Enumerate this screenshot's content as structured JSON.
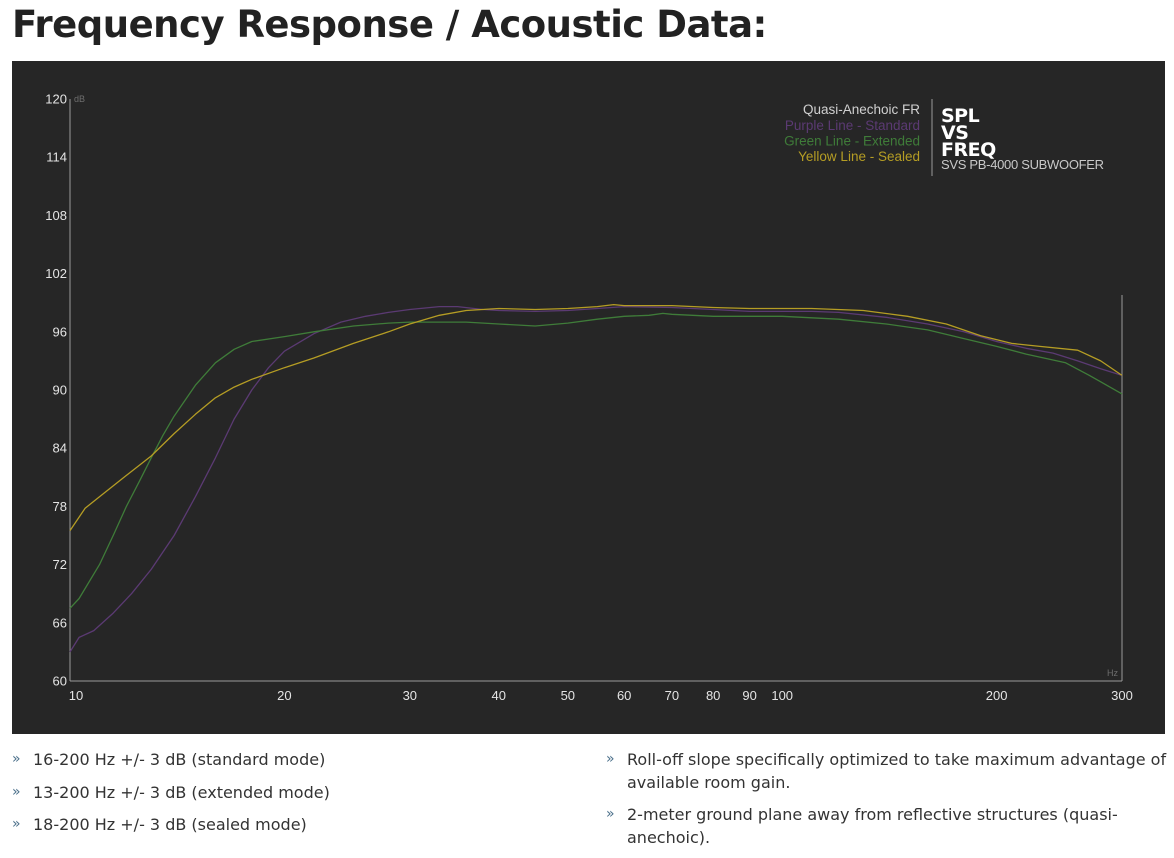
{
  "page": {
    "title": "Frequency Response / Acoustic Data:"
  },
  "legend": {
    "header": "Quasi-Anechoic FR",
    "items": [
      {
        "label": "Purple Line - Standard",
        "color": "#5b3a73"
      },
      {
        "label": "Green Line - Extended",
        "color": "#3f7c39"
      },
      {
        "label": "Yellow Line - Sealed",
        "color": "#b59d24"
      }
    ]
  },
  "brand": {
    "line1": "SPL",
    "line2": "VS",
    "line3": "FREQ",
    "subtitle": "SVS PB-4000 SUBWOOFER"
  },
  "bullets": {
    "left": [
      "16-200 Hz +/- 3 dB (standard mode)",
      "13-200 Hz +/- 3 dB (extended mode)",
      "18-200 Hz +/- 3 dB (sealed mode)"
    ],
    "right": [
      "Roll-off slope specifically optimized to take maximum advantage of available room gain.",
      " 2-meter ground plane away from reflective structures (quasi-anechoic)."
    ]
  },
  "chart_data": {
    "type": "line",
    "xscale": "log",
    "xlim": [
      10,
      300
    ],
    "ylim": [
      60,
      120
    ],
    "xlabel": "Hz",
    "ylabel": "dB",
    "xticks": [
      10,
      20,
      30,
      40,
      50,
      60,
      70,
      80,
      90,
      100,
      200,
      300
    ],
    "yticks": [
      60,
      66,
      72,
      78,
      84,
      90,
      96,
      102,
      108,
      114,
      120
    ],
    "grid": false,
    "legend_position": "top-right",
    "series": [
      {
        "name": "Purple Line - Standard",
        "color": "#5b3a73",
        "points": [
          [
            10,
            63
          ],
          [
            10.3,
            64.5
          ],
          [
            10.8,
            65.2
          ],
          [
            11.5,
            67
          ],
          [
            12.2,
            69
          ],
          [
            13,
            71.5
          ],
          [
            14,
            75
          ],
          [
            15,
            79
          ],
          [
            16,
            83
          ],
          [
            17,
            87
          ],
          [
            18,
            90
          ],
          [
            19,
            92.3
          ],
          [
            20,
            94
          ],
          [
            22,
            95.8
          ],
          [
            24,
            97
          ],
          [
            26,
            97.6
          ],
          [
            28,
            98
          ],
          [
            30,
            98.3
          ],
          [
            33,
            98.6
          ],
          [
            35,
            98.6
          ],
          [
            38,
            98.3
          ],
          [
            40,
            98.2
          ],
          [
            45,
            98.1
          ],
          [
            50,
            98.2
          ],
          [
            55,
            98.4
          ],
          [
            60,
            98.6
          ],
          [
            70,
            98.5
          ],
          [
            80,
            98.3
          ],
          [
            90,
            98.1
          ],
          [
            100,
            98.1
          ],
          [
            110,
            98.1
          ],
          [
            120,
            98
          ],
          [
            140,
            97.5
          ],
          [
            160,
            96.8
          ],
          [
            180,
            96
          ],
          [
            200,
            95
          ],
          [
            220,
            94.3
          ],
          [
            240,
            93.8
          ],
          [
            260,
            93
          ],
          [
            280,
            92.2
          ],
          [
            300,
            91.5
          ]
        ]
      },
      {
        "name": "Green Line - Extended",
        "color": "#3f7c39",
        "points": [
          [
            10,
            67.5
          ],
          [
            10.3,
            68.5
          ],
          [
            11,
            72
          ],
          [
            11.5,
            75
          ],
          [
            12,
            78
          ],
          [
            12.5,
            80.5
          ],
          [
            13,
            83
          ],
          [
            13.5,
            85.3
          ],
          [
            14,
            87.3
          ],
          [
            15,
            90.5
          ],
          [
            16,
            92.8
          ],
          [
            17,
            94.2
          ],
          [
            18,
            95
          ],
          [
            20,
            95.5
          ],
          [
            22,
            96
          ],
          [
            25,
            96.6
          ],
          [
            28,
            96.9
          ],
          [
            30,
            97
          ],
          [
            33,
            97
          ],
          [
            36,
            97
          ],
          [
            40,
            96.8
          ],
          [
            45,
            96.6
          ],
          [
            50,
            96.9
          ],
          [
            55,
            97.3
          ],
          [
            60,
            97.6
          ],
          [
            65,
            97.7
          ],
          [
            68,
            97.9
          ],
          [
            70,
            97.8
          ],
          [
            80,
            97.6
          ],
          [
            100,
            97.6
          ],
          [
            120,
            97.3
          ],
          [
            140,
            96.8
          ],
          [
            160,
            96.2
          ],
          [
            180,
            95.3
          ],
          [
            200,
            94.5
          ],
          [
            220,
            93.7
          ],
          [
            250,
            92.8
          ],
          [
            270,
            91.5
          ],
          [
            300,
            89.6
          ]
        ]
      },
      {
        "name": "Yellow Line - Sealed",
        "color": "#b59d24",
        "points": [
          [
            10,
            75.5
          ],
          [
            10.5,
            77.8
          ],
          [
            11,
            79
          ],
          [
            12,
            81.2
          ],
          [
            13,
            83.2
          ],
          [
            14,
            85.5
          ],
          [
            15,
            87.5
          ],
          [
            16,
            89.2
          ],
          [
            17,
            90.3
          ],
          [
            18,
            91.1
          ],
          [
            20,
            92.3
          ],
          [
            22,
            93.3
          ],
          [
            25,
            94.8
          ],
          [
            28,
            96
          ],
          [
            30,
            96.8
          ],
          [
            33,
            97.7
          ],
          [
            36,
            98.2
          ],
          [
            40,
            98.4
          ],
          [
            45,
            98.3
          ],
          [
            50,
            98.4
          ],
          [
            55,
            98.6
          ],
          [
            58,
            98.8
          ],
          [
            60,
            98.7
          ],
          [
            70,
            98.7
          ],
          [
            80,
            98.5
          ],
          [
            90,
            98.4
          ],
          [
            100,
            98.4
          ],
          [
            110,
            98.4
          ],
          [
            130,
            98.2
          ],
          [
            150,
            97.6
          ],
          [
            170,
            96.8
          ],
          [
            190,
            95.6
          ],
          [
            210,
            94.8
          ],
          [
            230,
            94.5
          ],
          [
            260,
            94.1
          ],
          [
            280,
            93
          ],
          [
            300,
            91.5
          ]
        ]
      }
    ]
  }
}
